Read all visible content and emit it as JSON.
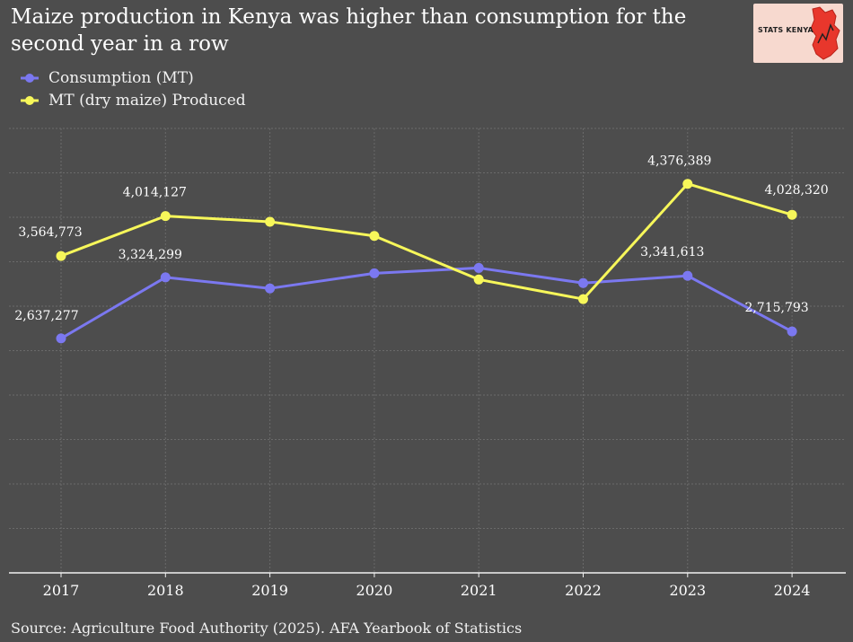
{
  "title": "Maize production in Kenya was higher than consumption for the second year in a row",
  "logo": {
    "text": "STATS KENYA"
  },
  "source": "Source: Agriculture Food Authority (2025). AFA Yearbook of Statistics",
  "chart_data": {
    "type": "line",
    "x": [
      "2017",
      "2018",
      "2019",
      "2020",
      "2021",
      "2022",
      "2023",
      "2024"
    ],
    "series": [
      {
        "name": "Consumption (MT)",
        "color": "#7b78f0",
        "values": [
          2637277,
          3324299,
          3200000,
          3370000,
          3430000,
          3260000,
          3341613,
          2715793
        ],
        "labels": [
          "2,637,277",
          "3,324,299",
          "",
          "",
          "",
          "",
          "3,341,613",
          "2,715,793"
        ]
      },
      {
        "name": "MT (dry maize) Produced",
        "color": "#f7f75a",
        "values": [
          3564773,
          4014127,
          3950000,
          3790000,
          3300000,
          3080000,
          4376389,
          4028320
        ],
        "labels": [
          "3,564,773",
          "4,014,127",
          "",
          "",
          "",
          "",
          "4,376,389",
          "4,028,320"
        ]
      }
    ],
    "ylim": [
      0,
      5000000
    ],
    "grid": true,
    "y_tick_labels_shown": false,
    "legend_position": "top-left"
  }
}
